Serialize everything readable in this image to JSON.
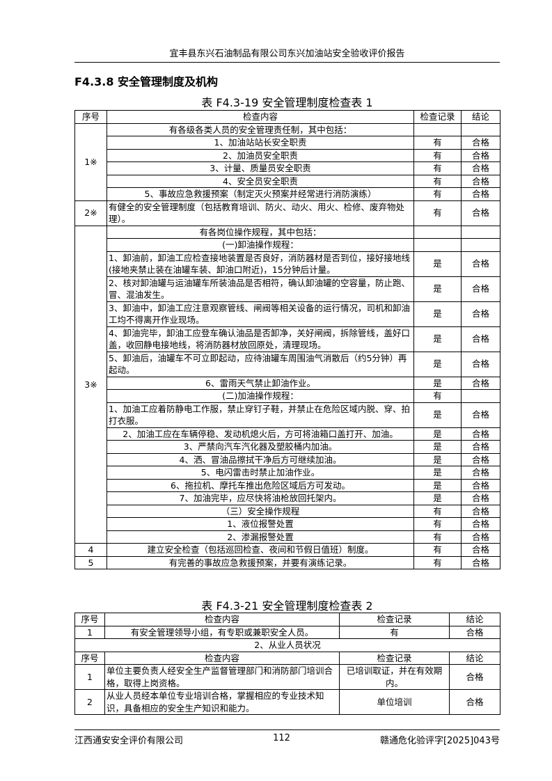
{
  "header": {
    "title": "宜丰县东兴石油制品有限公司东兴加油站安全验收评价报告"
  },
  "section": {
    "title": "F4.3.8 安全管理制度及机构"
  },
  "table1": {
    "caption": "表 F4.3-19 安全管理制度检查表 1",
    "columns": [
      "序号",
      "检查内容",
      "检查记录",
      "结论"
    ],
    "groups": [
      {
        "no": "1※",
        "rows": [
          [
            "有各级各类人员的安全管理责任制，其中包括：",
            null,
            null
          ],
          [
            "1、加油站站长安全职责",
            "有",
            "合格"
          ],
          [
            "2、加油员安全职责",
            "有",
            "合格"
          ],
          [
            "3、计量、质量员安全职责",
            "有",
            "合格"
          ],
          [
            "4、安全员安全职责",
            "有",
            "合格"
          ],
          [
            "5、事故应急救援预案（制定灭火预案并经常进行消防演练）",
            "有",
            "合格"
          ]
        ]
      },
      {
        "no": "2※",
        "rows": [
          [
            "有健全的安全管理制度（包括教育培训、防火、动火、用火、检修、废弃物处理）。",
            "有",
            "合格"
          ]
        ]
      },
      {
        "no": "3※",
        "rows": [
          [
            "有各岗位操作规程，其中包括：",
            null,
            null
          ],
          [
            "(一)卸油操作规程：",
            null,
            null
          ],
          [
            "1、卸油前，卸油工应检查接地装置是否良好，消防器材是否到位，接好接地线(接地夹禁止装在油罐车装、卸油口附近)，15分钟后计量。",
            "是",
            "合格"
          ],
          [
            "2、核对卸油罐与运油罐车所装油品是否相符，确认卸油罐的空容量，防止跑、冒、混油发生。",
            "是",
            "合格"
          ],
          [
            "3、卸油中，卸油工应注意观察管线、闸阀等相关设备的运行情况，司机和卸油工均不得离开作业现场。",
            "是",
            "合格"
          ],
          [
            "4、卸油完毕，卸油工应登车确认油品是否卸净，关好闸阀，拆除管线，盖好口盖，收回静电接地线，将消防器材放回原处，清理现场。",
            "是",
            "合格"
          ],
          [
            "5、卸油后，油罐车不可立即起动，应待油罐车周围油气消散后（约5分钟）再起动。",
            "是",
            "合格"
          ],
          [
            "6、雷雨天气禁止卸油作业。",
            "是",
            "合格"
          ],
          [
            "(二)加油操作规程：",
            "有",
            null
          ],
          [
            "1、加油工应着防静电工作服，禁止穿钉子鞋，并禁止在危险区域内脱、穿、拍打衣服。",
            "是",
            "合格"
          ],
          [
            "2、加油工应在车辆停稳、发动机熄火后，方可将油箱口盖打开、加油。",
            "是",
            "合格"
          ],
          [
            "3、严禁向汽车汽化器及塑胶桶内加油。",
            "是",
            "合格"
          ],
          [
            "4、洒、冒油品擦拭干净后方可继续加油。",
            "是",
            "合格"
          ],
          [
            "5、电闪雷击时禁止加油作业。",
            "是",
            "合格"
          ],
          [
            "6、拖拉机、摩托车推出危险区域后方可发动。",
            "是",
            "合格"
          ],
          [
            "7、加油完毕，应尽快将油枪放回托架内。",
            "是",
            "合格"
          ],
          [
            "（三）安全操作规程",
            "有",
            "合格"
          ],
          [
            "1、液位报警处置",
            "有",
            "合格"
          ],
          [
            "2、渗漏报警处置",
            "有",
            "合格"
          ]
        ]
      },
      {
        "no": "4",
        "rows": [
          [
            "建立安全检查（包括巡回检查、夜间和节假日值班）制度。",
            "有",
            "合格"
          ]
        ]
      },
      {
        "no": "5",
        "rows": [
          [
            "有完善的事故应急救援预案，并要有演练记录。",
            "有",
            "合格"
          ]
        ]
      }
    ]
  },
  "table2": {
    "caption": "表 F4.3-21 安全管理制度检查表 2",
    "columns": [
      "序号",
      "检查内容",
      "检查记录",
      "结论"
    ],
    "rows": [
      [
        "1",
        "有安全管理领导小组，有专职或兼职安全人员。",
        "有",
        "合格"
      ]
    ],
    "subsection": "2、从业人员状况",
    "columns2": [
      "序号",
      "检查内容",
      "检查记录",
      "结论"
    ],
    "rows2": [
      [
        "1",
        "单位主要负责人经安全生产监督管理部门和消防部门培训合格，取得上岗资格。",
        "已培训取证，并在有效期内。",
        "合格"
      ],
      [
        "2",
        "从业人员经本单位专业培训合格，掌握相应的专业技术知识，具备相应的安全生产知识和能力。",
        "单位培训",
        "合格"
      ]
    ]
  },
  "footer": {
    "company": "江西通安安全评价有限公司",
    "page": "112",
    "doc_no": "赣通危化验评字[2025]043号"
  }
}
